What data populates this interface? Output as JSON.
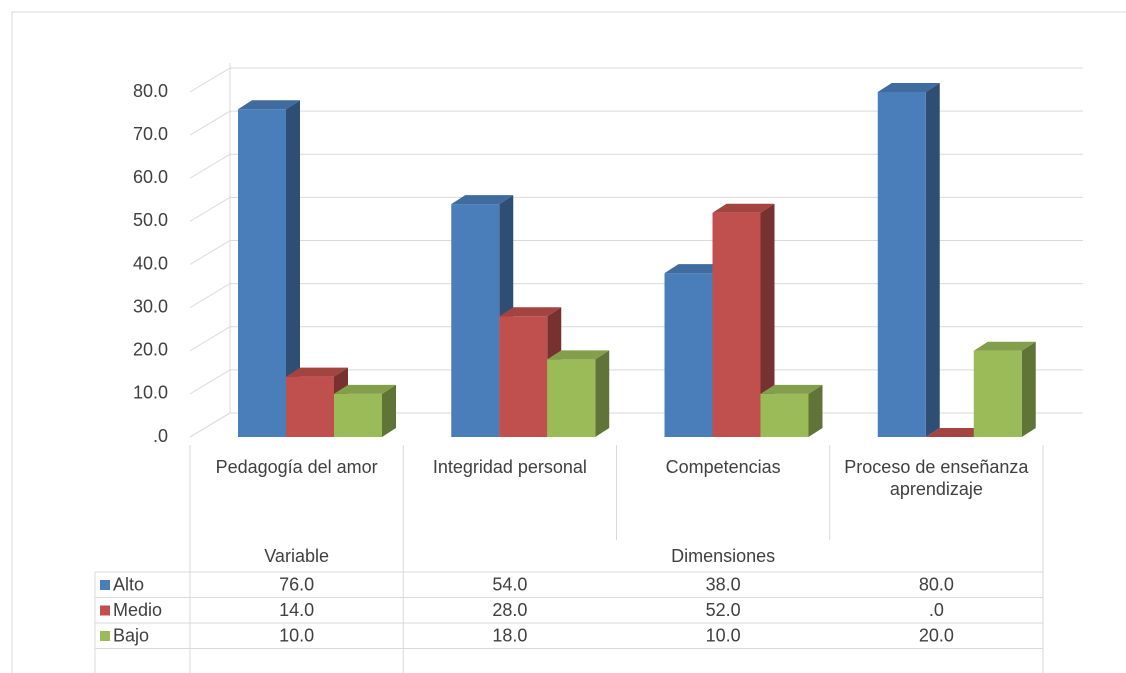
{
  "chart_data": {
    "type": "bar3d",
    "categories": [
      "Pedagogía del amor",
      "Integridad personal",
      "Competencias",
      "Proceso de enseñanza aprendizaje"
    ],
    "groups": [
      {
        "label": "Variable",
        "span": 1
      },
      {
        "label": "Dimensiones",
        "span": 3
      }
    ],
    "series": [
      {
        "name": "Alto",
        "color": "#4a7ebb",
        "values": [
          76,
          54,
          38,
          80
        ],
        "value_labels": [
          "76.0",
          "54.0",
          "38.0",
          "80.0"
        ]
      },
      {
        "name": "Medio",
        "color": "#c0504d",
        "values": [
          14,
          28,
          52,
          0
        ],
        "value_labels": [
          "14.0",
          "28.0",
          "52.0",
          ".0"
        ]
      },
      {
        "name": "Bajo",
        "color": "#9bbb59",
        "values": [
          10,
          18,
          10,
          20
        ],
        "value_labels": [
          "10.0",
          "18.0",
          "10.0",
          "20.0"
        ]
      }
    ],
    "ylim": [
      0,
      80
    ],
    "yticks": [
      {
        "value": 0,
        "label": ".0"
      },
      {
        "value": 10,
        "label": "10.0"
      },
      {
        "value": 20,
        "label": "20.0"
      },
      {
        "value": 30,
        "label": "30.0"
      },
      {
        "value": 40,
        "label": "40.0"
      },
      {
        "value": 50,
        "label": "50.0"
      },
      {
        "value": 60,
        "label": "60.0"
      },
      {
        "value": 70,
        "label": "70.0"
      },
      {
        "value": 80,
        "label": "80.0"
      }
    ],
    "grid": true,
    "data_table": true
  }
}
